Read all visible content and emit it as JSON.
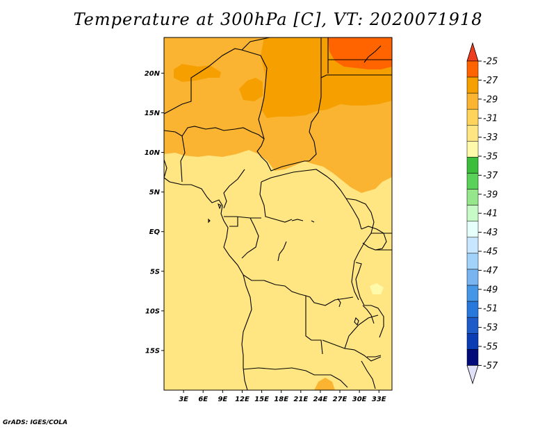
{
  "title": "Temperature at 300hPa [C], VT: 2020071918",
  "credit": "GrADS: IGES/COLA",
  "map": {
    "lat_labels": [
      "20N",
      "15N",
      "10N",
      "5N",
      "EQ",
      "5S",
      "10S",
      "15S"
    ],
    "lat_values": [
      20,
      15,
      10,
      5,
      0,
      -5,
      -10,
      -15
    ],
    "lon_labels": [
      "3E",
      "6E",
      "9E",
      "12E",
      "15E",
      "18E",
      "21E",
      "24E",
      "27E",
      "30E",
      "33E"
    ],
    "lon_values": [
      3,
      6,
      9,
      12,
      15,
      18,
      21,
      24,
      27,
      30,
      33
    ],
    "lat_range": [
      -20,
      24.5
    ],
    "lon_range": [
      0,
      35
    ]
  },
  "colorbar": {
    "labels": [
      "-25",
      "-27",
      "-29",
      "-31",
      "-33",
      "-35",
      "-37",
      "-39",
      "-41",
      "-43",
      "-45",
      "-47",
      "-49",
      "-51",
      "-53",
      "-55",
      "-57"
    ],
    "colors": [
      "#f03c1e",
      "#ff6400",
      "#f5a000",
      "#fab432",
      "#ffd25a",
      "#ffe682",
      "#fffaaa",
      "#3cbe3c",
      "#5ad25a",
      "#96e68c",
      "#c8fac8",
      "#e6fffa",
      "#c8e6ff",
      "#a0d2fa",
      "#78b4f0",
      "#4696e6",
      "#2878dc",
      "#1e5ac8",
      "#0a3cb4",
      "#000a78",
      "#e0e0f8"
    ]
  },
  "chart_data": {
    "type": "heatmap",
    "title": "Temperature at 300hPa [C], VT: 2020071918",
    "x_range": [
      0,
      35
    ],
    "y_range": [
      -20,
      24.5
    ],
    "x_ticks": [
      "3E",
      "6E",
      "9E",
      "12E",
      "15E",
      "18E",
      "21E",
      "24E",
      "27E",
      "30E",
      "33E"
    ],
    "y_ticks": [
      "20N",
      "15N",
      "10N",
      "5N",
      "EQ",
      "5S",
      "10S",
      "15S"
    ],
    "levels": [
      -57,
      -55,
      -53,
      -51,
      -49,
      -47,
      -45,
      -43,
      -41,
      -39,
      -37,
      -35,
      -33,
      -31,
      -29,
      -27,
      -25
    ],
    "regions": [
      {
        "area": "northeast (~23N, 27-34E)",
        "range": "-27 to -25"
      },
      {
        "area": "north-central Sahel/Sahara (15-23N, 13-35E)",
        "range": "-29 to -27"
      },
      {
        "area": "north / northwest (10-23N)",
        "range": "-31 to -29"
      },
      {
        "area": "equatorial to southern Africa",
        "range": "-33 to -31"
      },
      {
        "area": "small patch ~7S, 33E",
        "range": "-35 to -33"
      }
    ]
  }
}
